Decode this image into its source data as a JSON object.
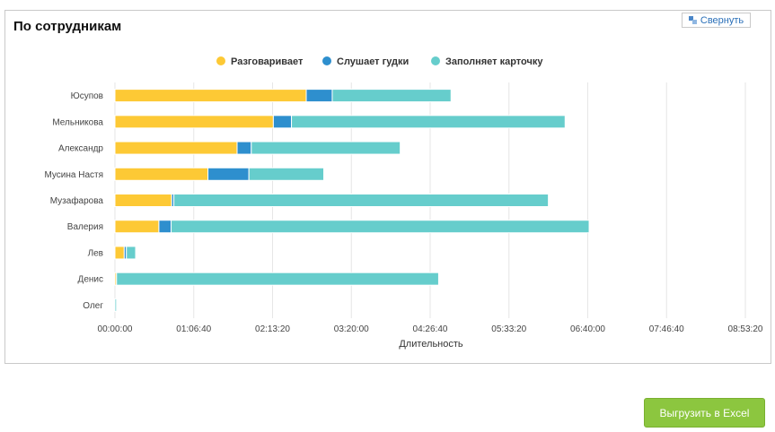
{
  "panel": {
    "title": "По сотрудникам",
    "collapse_label": "Свернуть",
    "collapse_icon": "collapse-icon"
  },
  "export_button": {
    "label": "Выгрузить в Excel"
  },
  "colors": {
    "talking": "#fdc935",
    "ringing": "#2e8fce",
    "card": "#66cdcc",
    "grid": "#e6e6e6",
    "excel": "#8cc63f"
  },
  "chart_data": {
    "type": "bar",
    "orientation": "horizontal",
    "stacked": true,
    "categories": [
      "Юсупов",
      "Мельникова",
      "Александр",
      "Мусина Настя",
      "Музафарова",
      "Валерия",
      "Лев",
      "Денис",
      "Олег"
    ],
    "series": [
      {
        "name": "Разговаривает",
        "color": "#fdc935",
        "values": [
          9710,
          8040,
          6200,
          4720,
          2880,
          2230,
          470,
          80,
          0
        ]
      },
      {
        "name": "Слушает гудки",
        "color": "#2e8fce",
        "values": [
          1320,
          920,
          720,
          2080,
          110,
          620,
          110,
          0,
          0
        ]
      },
      {
        "name": "Заполняет карточку",
        "color": "#66cdcc",
        "values": [
          6030,
          13890,
          7560,
          3800,
          19010,
          21220,
          470,
          16350,
          80
        ]
      }
    ],
    "xlabel": "Длительность",
    "ylabel": "",
    "xlim": [
      0,
      32000
    ],
    "xticks": [
      0,
      4000,
      8000,
      12000,
      16000,
      20000,
      24000,
      28000,
      32000
    ],
    "xtick_labels": [
      "00:00:00",
      "01:06:40",
      "02:13:20",
      "03:20:00",
      "04:26:40",
      "05:33:20",
      "06:40:00",
      "07:46:40",
      "08:53:20"
    ],
    "grid": true,
    "legend_position": "top-center"
  }
}
